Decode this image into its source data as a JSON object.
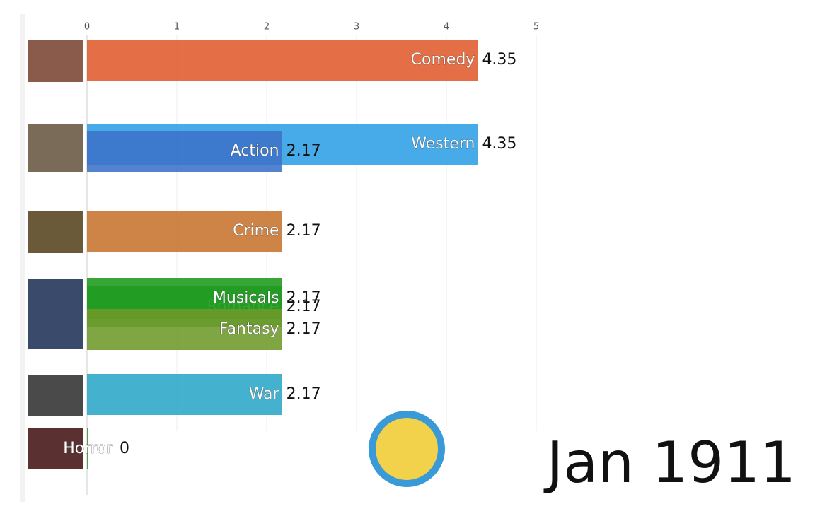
{
  "chart_data": {
    "type": "bar",
    "orientation": "horizontal",
    "categories": [
      "Comedy",
      "Western",
      "Action",
      "Crime",
      "Romance",
      "Musicals",
      "Fantasy",
      "War",
      "Horror"
    ],
    "values": [
      4.35,
      4.35,
      2.17,
      2.17,
      2.17,
      2.17,
      2.17,
      2.17,
      0
    ],
    "colors": [
      "#e05a2b",
      "#2f9fe6",
      "#3b72c8",
      "#c8732e",
      "#3fa33a",
      "#1b9a1b",
      "#6e9a2a",
      "#2aa6c8",
      "#3a9a3a"
    ],
    "xlim": [
      0,
      5.5
    ],
    "xticks": [
      0,
      1,
      2,
      3,
      4,
      5
    ],
    "grid": true,
    "date_label": "Jan 1911"
  }
}
